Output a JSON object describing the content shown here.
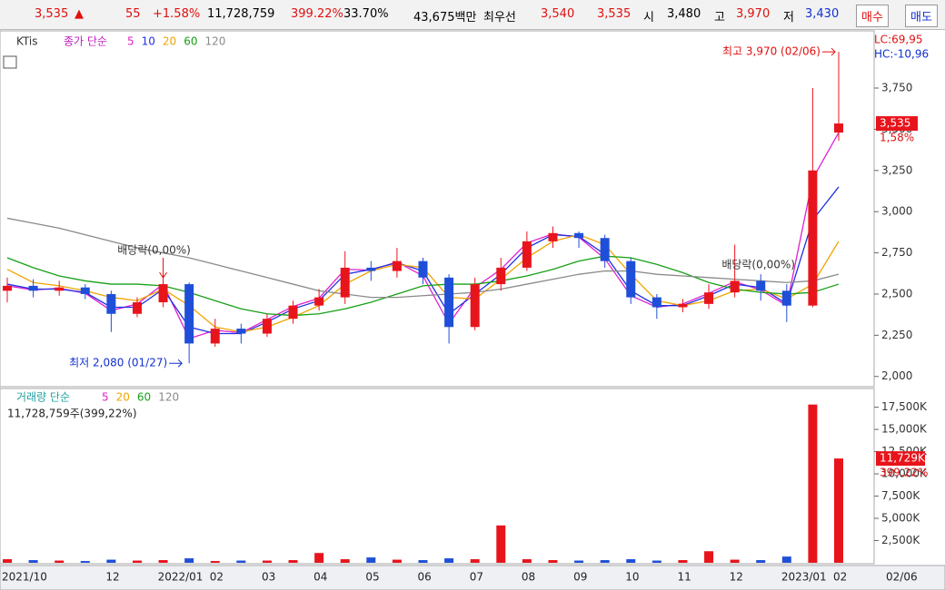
{
  "quote_bar": {
    "price": "3,535",
    "change": "55",
    "change_pct": "+1.58%",
    "volume": "11,728,759",
    "volume_ratio": "399.22%",
    "turnover": "33.70%",
    "amount": "43,675백만",
    "best_label": "최우선",
    "best_ask": "3,540",
    "best_bid": "3,535",
    "open_label": "시",
    "open": "3,480",
    "high_label": "고",
    "high": "3,970",
    "low_label": "저",
    "low": "3,430",
    "buy": "매수",
    "sell": "매도"
  },
  "chart_data": [
    {
      "type": "candlestick",
      "title": "KTis",
      "legend_title": "종가 단순",
      "categories": [
        "2021/10",
        null,
        null,
        null,
        "12",
        null,
        "2022/01",
        null,
        "02",
        null,
        "03",
        null,
        "04",
        null,
        "05",
        null,
        "06",
        null,
        "07",
        null,
        "08",
        null,
        "09",
        null,
        "10",
        null,
        "11",
        null,
        "12",
        null,
        "2023/01",
        null,
        "02"
      ],
      "open": [
        2520,
        2550,
        2520,
        2540,
        2500,
        2380,
        2450,
        2560,
        2200,
        2290,
        2260,
        2350,
        2430,
        2480,
        2660,
        2640,
        2700,
        2600,
        2300,
        2560,
        2660,
        2820,
        2870,
        2840,
        2700,
        2480,
        2420,
        2440,
        2510,
        2580,
        2520,
        2430,
        3480
      ],
      "high": [
        2600,
        2590,
        2580,
        2560,
        2520,
        2480,
        2620,
        2570,
        2350,
        2320,
        2380,
        2460,
        2530,
        2760,
        2700,
        2780,
        2720,
        2620,
        2600,
        2720,
        2880,
        2910,
        2880,
        2860,
        2720,
        2500,
        2470,
        2560,
        2800,
        2620,
        2560,
        3750,
        3970
      ],
      "low": [
        2450,
        2480,
        2490,
        2470,
        2270,
        2360,
        2420,
        2080,
        2180,
        2200,
        2240,
        2320,
        2400,
        2440,
        2580,
        2600,
        2560,
        2200,
        2280,
        2520,
        2640,
        2780,
        2780,
        2660,
        2440,
        2350,
        2390,
        2410,
        2480,
        2460,
        2330,
        2420,
        3430
      ],
      "close": [
        2550,
        2520,
        2540,
        2500,
        2380,
        2450,
        2560,
        2200,
        2290,
        2260,
        2350,
        2430,
        2480,
        2660,
        2640,
        2700,
        2600,
        2300,
        2560,
        2660,
        2820,
        2870,
        2840,
        2700,
        2480,
        2420,
        2440,
        2510,
        2580,
        2520,
        2430,
        3250,
        3535
      ],
      "up_color": "#e8141c",
      "down_color": "#1f4fd8",
      "series": [
        {
          "name": "5",
          "color": "#e020d0",
          "values": [
            2550,
            2525,
            2535,
            2505,
            2400,
            2440,
            2560,
            2230,
            2280,
            2265,
            2345,
            2425,
            2475,
            2650,
            2645,
            2695,
            2610,
            2320,
            2540,
            2650,
            2810,
            2865,
            2845,
            2715,
            2490,
            2420,
            2440,
            2505,
            2575,
            2525,
            2430,
            3200,
            3480
          ]
        },
        {
          "name": "10",
          "color": "#2030e0",
          "values": [
            2560,
            2530,
            2530,
            2510,
            2420,
            2420,
            2530,
            2300,
            2260,
            2260,
            2330,
            2410,
            2460,
            2620,
            2650,
            2690,
            2640,
            2380,
            2500,
            2620,
            2780,
            2860,
            2850,
            2740,
            2520,
            2430,
            2430,
            2490,
            2560,
            2540,
            2440,
            2950,
            3150
          ]
        },
        {
          "name": "20",
          "color": "#f0a400",
          "values": [
            2650,
            2570,
            2550,
            2520,
            2480,
            2460,
            2530,
            2430,
            2300,
            2270,
            2300,
            2360,
            2430,
            2560,
            2640,
            2680,
            2660,
            2480,
            2470,
            2590,
            2720,
            2820,
            2860,
            2800,
            2620,
            2460,
            2430,
            2460,
            2520,
            2530,
            2470,
            2560,
            2820
          ]
        },
        {
          "name": "60",
          "color": "#16a016",
          "values": [
            2720,
            2660,
            2610,
            2580,
            2560,
            2560,
            2550,
            2510,
            2460,
            2410,
            2380,
            2370,
            2380,
            2410,
            2450,
            2500,
            2550,
            2560,
            2560,
            2580,
            2610,
            2650,
            2700,
            2730,
            2720,
            2680,
            2630,
            2570,
            2530,
            2510,
            2500,
            2510,
            2560
          ]
        },
        {
          "name": "120",
          "color": "#8a8a8a",
          "values": [
            2960,
            2930,
            2900,
            2860,
            2820,
            2780,
            2750,
            2720,
            2680,
            2640,
            2600,
            2560,
            2520,
            2500,
            2480,
            2480,
            2490,
            2500,
            2510,
            2530,
            2560,
            2590,
            2620,
            2640,
            2640,
            2620,
            2610,
            2600,
            2590,
            2580,
            2570,
            2580,
            2620
          ]
        }
      ],
      "ylim": [
        1960,
        4075
      ],
      "yticks": [
        {
          "value": 2000,
          "label": "2,000"
        },
        {
          "value": 2250,
          "label": "2,250"
        },
        {
          "value": 2500,
          "label": "2,500"
        },
        {
          "value": 2750,
          "label": "2,750"
        },
        {
          "value": 3000,
          "label": "3,000"
        },
        {
          "value": 3250,
          "label": "3,250"
        },
        {
          "value": 3500,
          "label": "3,500"
        },
        {
          "value": 3750,
          "label": "3,750"
        }
      ],
      "lc": "LC:69,95",
      "hc": "HC:-10,96",
      "last_price": {
        "value": 3535,
        "label": "3,535"
      },
      "last_change": "1,58%",
      "annotations": [
        "최고 3,970 (02/06)",
        "최저 2,080 (01/27)",
        "배당락(0,00%)",
        "배당락(0,00%)"
      ],
      "current_date": "02/06"
    },
    {
      "type": "bar",
      "legend_title": "거래량 단순",
      "legend": [
        {
          "name": "5",
          "color": "#e020d0"
        },
        {
          "name": "20",
          "color": "#f0a400"
        },
        {
          "name": "60",
          "color": "#16a016"
        },
        {
          "name": "120",
          "color": "#8a8a8a"
        }
      ],
      "subtitle": "11,728,759주(399,22%)",
      "values": [
        400000,
        300000,
        250000,
        200000,
        350000,
        250000,
        300000,
        500000,
        200000,
        250000,
        250000,
        300000,
        1100000,
        400000,
        600000,
        350000,
        300000,
        500000,
        400000,
        4200000,
        400000,
        300000,
        250000,
        300000,
        400000,
        250000,
        300000,
        1300000,
        350000,
        300000,
        700000,
        17800000,
        11728759
      ],
      "ylim": [
        0,
        19400000
      ],
      "yticks": [
        {
          "value": 2500000,
          "label": "2,500K"
        },
        {
          "value": 5000000,
          "label": "5,000K"
        },
        {
          "value": 7500000,
          "label": "7,500K"
        },
        {
          "value": 10000000,
          "label": "10,000K"
        },
        {
          "value": 12500000,
          "label": "12,500K"
        },
        {
          "value": 15000000,
          "label": "15,000K"
        },
        {
          "value": 17500000,
          "label": "17,500K"
        }
      ],
      "last_label": "11,729K",
      "last_ratio": "399,22%"
    }
  ]
}
